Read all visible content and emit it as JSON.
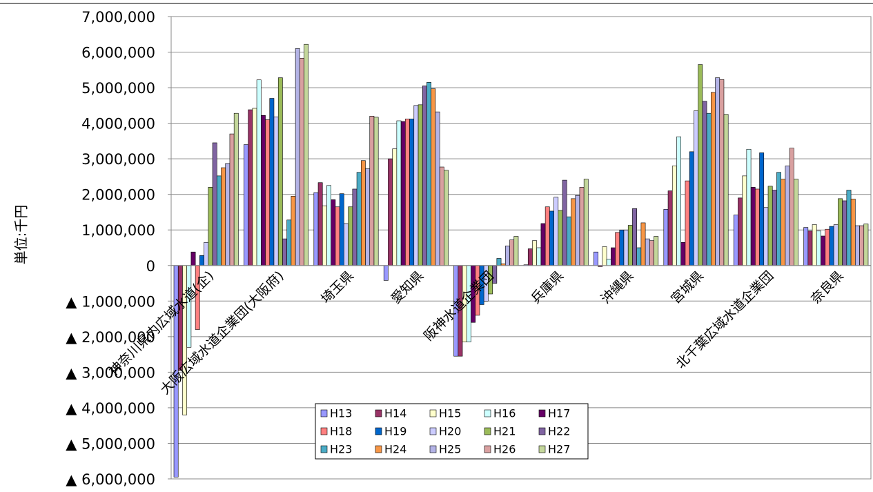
{
  "chart_data": {
    "type": "bar",
    "y_label": "単位:千円",
    "categories": [
      "神奈川県内広域水道(企)",
      "大阪広域水道企業団(大阪府)",
      "埼玉県",
      "愛知県",
      "阪神水道企業団",
      "兵庫県",
      "沖縄県",
      "宮城県",
      "北千葉広域水道企業団",
      "奈良県"
    ],
    "series": [
      {
        "name": "H13",
        "color": "#9999ff",
        "values": [
          -5950000,
          3400000,
          2050000,
          -420000,
          -2550000,
          20000,
          380000,
          1580000,
          1420000,
          1070000
        ]
      },
      {
        "name": "H14",
        "color": "#993366",
        "values": [
          -2950000,
          4380000,
          2330000,
          3000000,
          -2550000,
          470000,
          -30000,
          2100000,
          1900000,
          970000
        ]
      },
      {
        "name": "H15",
        "color": "#ffffcc",
        "values": [
          -4200000,
          4420000,
          1680000,
          3280000,
          -2150000,
          700000,
          530000,
          2800000,
          2520000,
          1150000
        ]
      },
      {
        "name": "H16",
        "color": "#ccffff",
        "values": [
          -2300000,
          5220000,
          2250000,
          4070000,
          -2150000,
          500000,
          180000,
          3620000,
          3270000,
          970000
        ]
      },
      {
        "name": "H17",
        "color": "#660066",
        "values": [
          380000,
          4220000,
          1850000,
          4050000,
          -1600000,
          1180000,
          500000,
          650000,
          2200000,
          830000
        ]
      },
      {
        "name": "H18",
        "color": "#ff8080",
        "values": [
          -1800000,
          4100000,
          1650000,
          4120000,
          -1400000,
          1650000,
          930000,
          2380000,
          2150000,
          1020000
        ]
      },
      {
        "name": "H19",
        "color": "#0066cc",
        "values": [
          280000,
          4700000,
          2020000,
          4120000,
          -1100000,
          1530000,
          1000000,
          3200000,
          3170000,
          1100000
        ]
      },
      {
        "name": "H20",
        "color": "#ccccff",
        "values": [
          650000,
          4180000,
          1180000,
          4500000,
          -1000000,
          1920000,
          1000000,
          4350000,
          1630000,
          1150000
        ]
      },
      {
        "name": "H21",
        "color": "#9bbb59",
        "values": [
          2200000,
          5280000,
          1650000,
          4520000,
          -800000,
          1550000,
          1130000,
          5650000,
          2230000,
          1880000
        ]
      },
      {
        "name": "H22",
        "color": "#8064a2",
        "values": [
          3450000,
          750000,
          2150000,
          5050000,
          -500000,
          2400000,
          1600000,
          4620000,
          2120000,
          1820000
        ]
      },
      {
        "name": "H23",
        "color": "#4bacc6",
        "values": [
          2520000,
          1280000,
          2620000,
          5150000,
          200000,
          1370000,
          500000,
          4280000,
          2620000,
          2120000
        ]
      },
      {
        "name": "H24",
        "color": "#f79646",
        "values": [
          2750000,
          1950000,
          2950000,
          4970000,
          50000,
          1880000,
          1200000,
          4870000,
          2430000,
          1870000
        ]
      },
      {
        "name": "H25",
        "color": "#b3b3e6",
        "values": [
          2870000,
          6100000,
          2720000,
          4320000,
          550000,
          1970000,
          750000,
          5280000,
          2800000,
          1120000
        ]
      },
      {
        "name": "H26",
        "color": "#d9a0a0",
        "values": [
          3700000,
          5830000,
          4200000,
          2770000,
          720000,
          2200000,
          700000,
          5230000,
          3300000,
          1120000
        ]
      },
      {
        "name": "H27",
        "color": "#c4d79b",
        "values": [
          4280000,
          6220000,
          4170000,
          2680000,
          820000,
          2430000,
          820000,
          4250000,
          2430000,
          1170000
        ]
      }
    ],
    "ylim": [
      -6000000,
      7000000
    ],
    "yticks": [
      {
        "value": -6000000,
        "label": "▲ 6,000,000"
      },
      {
        "value": -5000000,
        "label": "▲ 5,000,000"
      },
      {
        "value": -4000000,
        "label": "▲ 4,000,000"
      },
      {
        "value": -3000000,
        "label": "▲ 3,000,000"
      },
      {
        "value": -2000000,
        "label": "▲ 2,000,000"
      },
      {
        "value": -1000000,
        "label": "▲ 1,000,000"
      },
      0,
      {
        "value": 1000000,
        "label": "1,000,000"
      },
      {
        "value": 2000000,
        "label": "2,000,000"
      },
      {
        "value": 3000000,
        "label": "3,000,000"
      },
      {
        "value": 4000000,
        "label": "4,000,000"
      },
      {
        "value": 5000000,
        "label": "5,000,000"
      },
      {
        "value": 6000000,
        "label": "6,000,000"
      },
      {
        "value": 7000000,
        "label": "7,000,000"
      }
    ],
    "grid": true
  }
}
